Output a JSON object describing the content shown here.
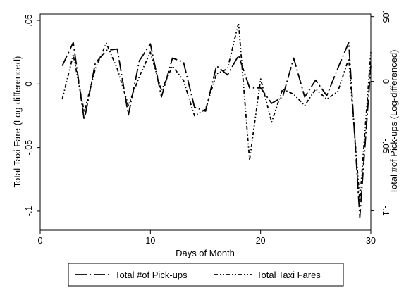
{
  "chart_data": {
    "type": "line",
    "title": "",
    "xlabel": "Days of Month",
    "ylabel_left": "Total Taxi Fare (Log-differenced)",
    "ylabel_right": "Total #of Pick-ups (Log-differenced)",
    "xlim": [
      0,
      30
    ],
    "ylim_left": [
      -0.115,
      0.055
    ],
    "ylim_right": [
      -0.115,
      0.052
    ],
    "x_ticks": [
      0,
      10,
      20,
      30
    ],
    "x_tick_labels": [
      "0",
      "10",
      "20",
      "30"
    ],
    "y_left_ticks": [
      0.05,
      0,
      -0.05,
      -0.1
    ],
    "y_left_tick_labels": [
      ".05",
      "0",
      "-.05",
      "-.1"
    ],
    "y_right_ticks": [
      0.05,
      0,
      -0.05,
      -0.1
    ],
    "y_right_tick_labels": [
      ".05",
      "0",
      "-.05",
      "-.1"
    ],
    "grid": false,
    "legend_position": "bottom",
    "series": [
      {
        "name": "Total #of Pick-ups",
        "axis": "right",
        "line_style": "long-dash-dot",
        "color": "#000000",
        "x": [
          2,
          3,
          4,
          5,
          6,
          7,
          8,
          9,
          10,
          11,
          12,
          13,
          14,
          15,
          16,
          17,
          18,
          19,
          20,
          21,
          22,
          23,
          24,
          25,
          26,
          27,
          28,
          29,
          30
        ],
        "values": [
          0.012,
          0.03,
          -0.03,
          0.014,
          0.024,
          0.025,
          -0.026,
          0.016,
          0.029,
          -0.012,
          0.018,
          0.015,
          -0.02,
          -0.023,
          0.012,
          0.005,
          0.02,
          -0.005,
          -0.005,
          -0.017,
          -0.012,
          0.018,
          -0.012,
          0.001,
          -0.011,
          0.01,
          0.03,
          -0.105,
          0.012
        ]
      },
      {
        "name": "Total Taxi Fares",
        "axis": "left",
        "line_style": "dash-dot-dot",
        "color": "#000000",
        "x": [
          2,
          3,
          4,
          5,
          6,
          7,
          8,
          9,
          10,
          11,
          12,
          13,
          14,
          15,
          16,
          17,
          18,
          19,
          20,
          21,
          22,
          23,
          24,
          25,
          26,
          27,
          28,
          29,
          30
        ],
        "values": [
          -0.012,
          0.023,
          -0.022,
          0.012,
          0.032,
          0.012,
          -0.017,
          0.006,
          0.025,
          -0.005,
          0.014,
          0.003,
          -0.025,
          -0.02,
          0.008,
          0.012,
          0.048,
          -0.06,
          0.004,
          -0.03,
          -0.004,
          -0.008,
          -0.017,
          -0.004,
          -0.012,
          -0.006,
          0.02,
          -0.092,
          0.025
        ]
      }
    ]
  }
}
